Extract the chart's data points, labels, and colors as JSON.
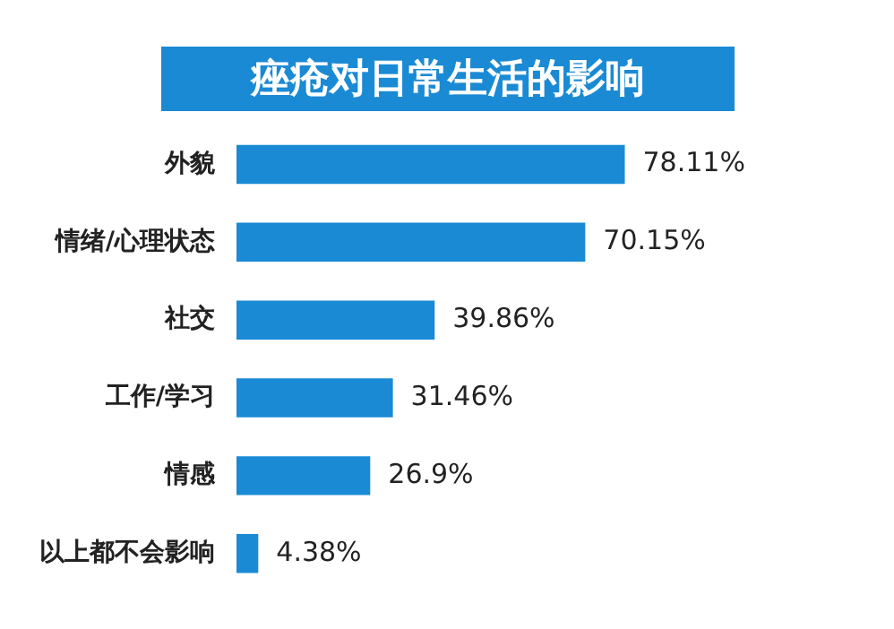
{
  "chart_data": {
    "type": "bar",
    "orientation": "horizontal",
    "title": "痤疮对日常生活的影响",
    "categories": [
      "外貌",
      "情绪/心理状态",
      "社交",
      "工作/学习",
      "情感",
      "以上都不会影响"
    ],
    "values": [
      78.11,
      70.15,
      39.86,
      31.46,
      26.9,
      4.38
    ],
    "value_labels": [
      "78.11%",
      "70.15%",
      "39.86%",
      "31.46%",
      "26.9%",
      "4.38%"
    ],
    "color": "#1a8ad4",
    "grid": false,
    "legend": false
  }
}
